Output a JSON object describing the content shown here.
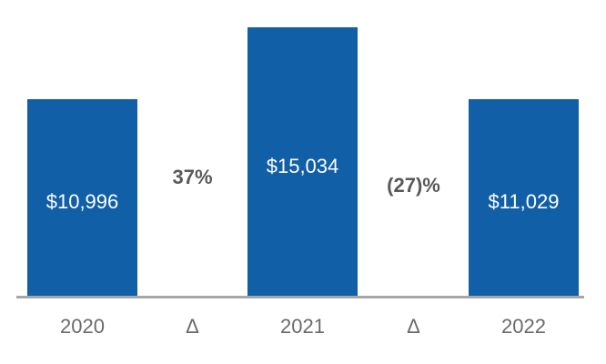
{
  "chart_data": {
    "type": "bar",
    "title": "",
    "xlabel": "",
    "ylabel": "",
    "categories": [
      "2020",
      "Δ",
      "2021",
      "Δ",
      "2022"
    ],
    "bars": [
      {
        "category": "2020",
        "value": 10996,
        "label": "$10,996"
      },
      {
        "category": "2021",
        "value": 15034,
        "label": "$15,034"
      },
      {
        "category": "2022",
        "value": 11029,
        "label": "$11,029"
      }
    ],
    "annotations": [
      {
        "label": "37%",
        "between": [
          "2020",
          "2021"
        ]
      },
      {
        "label": "(27)%",
        "between": [
          "2021",
          "2022"
        ]
      }
    ],
    "axis_labels": [
      "2020",
      "Δ",
      "2021",
      "Δ",
      "2022"
    ],
    "ylim": [
      0,
      15034
    ],
    "grid": false,
    "legend": "none",
    "value_labels_position": "inside-center",
    "colors": {
      "bar_fill": "#115FA6",
      "bar_label_text": "#FFFFFF",
      "annotation_text": "#595959",
      "axis_label_text": "#6A6A6A",
      "baseline": "#A6A6A6",
      "background": "#FFFFFF"
    }
  }
}
